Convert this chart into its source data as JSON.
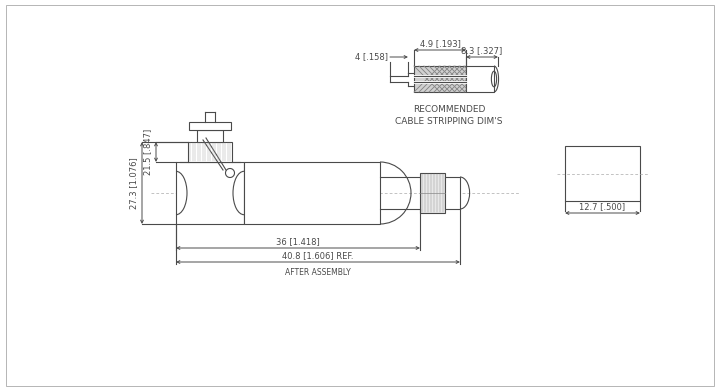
{
  "bg_color": "#ffffff",
  "line_color": "#4a4a4a",
  "dim_color": "#4a4a4a",
  "font_size": 6.5,
  "annotations": {
    "dim_21_5": "21.5 [.847]",
    "dim_27_3": "27.3 [1.076]",
    "dim_36": "36 [1.418]",
    "dim_40_8": "40.8 [1.606] REF.",
    "after_assembly": "AFTER ASSEMBLY",
    "dim_4": "4 [.158]",
    "dim_4_9": "4.9 [.193]",
    "dim_8_3": "8.3 [.327]",
    "dim_12_7": "12.7 [.500]",
    "recommended": "RECOMMENDED",
    "cable_stripping": "CABLE STRIPPING DIM'S"
  }
}
